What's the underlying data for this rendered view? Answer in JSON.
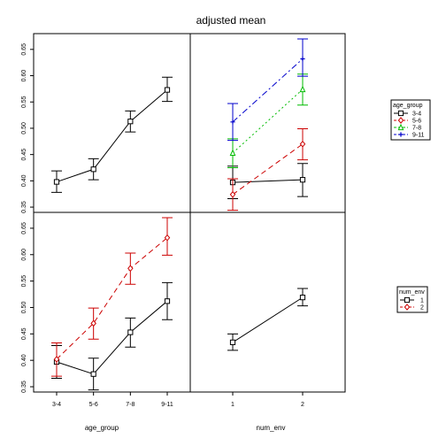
{
  "chart_data": {
    "type": "line",
    "title": "adjusted mean",
    "panels": {
      "age_main": {
        "type": "line",
        "xlabel": "",
        "categories": [
          "3-4",
          "5-6",
          "7-8",
          "9-11"
        ],
        "ylim": [
          0.34,
          0.68
        ],
        "yticks": [
          0.35,
          0.4,
          0.45,
          0.5,
          0.55,
          0.6,
          0.65
        ],
        "series": [
          {
            "values": [
              0.398,
              0.422,
              0.513,
              0.573
            ],
            "lower": [
              0.378,
              0.402,
              0.493,
              0.551
            ],
            "upper": [
              0.419,
              0.442,
              0.533,
              0.597
            ],
            "color": "#000000",
            "marker": "square",
            "dash": "solid"
          }
        ]
      },
      "env_by_age": {
        "type": "line",
        "categories": [
          "1",
          "2"
        ],
        "ylim": [
          0.34,
          0.68
        ],
        "series": [
          {
            "name": "3-4",
            "values": [
              0.397,
              0.402
            ],
            "lower": [
              0.366,
              0.37
            ],
            "upper": [
              0.428,
              0.433
            ],
            "color": "#000000",
            "marker": "square",
            "dash": "solid"
          },
          {
            "name": "5-6",
            "values": [
              0.374,
              0.47
            ],
            "lower": [
              0.344,
              0.44
            ],
            "upper": [
              0.404,
              0.499
            ],
            "color": "#cc0000",
            "marker": "diamond",
            "dash": "6,4"
          },
          {
            "name": "7-8",
            "values": [
              0.453,
              0.574
            ],
            "lower": [
              0.425,
              0.544
            ],
            "upper": [
              0.48,
              0.603
            ],
            "color": "#00bb00",
            "marker": "triangle",
            "dash": "2,3"
          },
          {
            "name": "9-11",
            "values": [
              0.512,
              0.632
            ],
            "lower": [
              0.477,
              0.599
            ],
            "upper": [
              0.547,
              0.67
            ],
            "color": "#0000cc",
            "marker": "plus",
            "dash": "7,3,2,3"
          }
        ]
      },
      "age_by_env": {
        "type": "line",
        "xlabel": "age_group",
        "categories": [
          "3-4",
          "5-6",
          "7-8",
          "9-11"
        ],
        "ylim": [
          0.34,
          0.68
        ],
        "yticks": [
          0.35,
          0.4,
          0.45,
          0.5,
          0.55,
          0.6,
          0.65
        ],
        "series": [
          {
            "name": "1",
            "values": [
              0.397,
              0.374,
              0.453,
              0.512
            ],
            "lower": [
              0.366,
              0.344,
              0.425,
              0.477
            ],
            "upper": [
              0.428,
              0.404,
              0.48,
              0.547
            ],
            "color": "#000000",
            "marker": "square",
            "dash": "solid"
          },
          {
            "name": "2",
            "values": [
              0.402,
              0.47,
              0.574,
              0.632
            ],
            "lower": [
              0.37,
              0.44,
              0.544,
              0.599
            ],
            "upper": [
              0.433,
              0.499,
              0.603,
              0.67
            ],
            "color": "#cc0000",
            "marker": "diamond",
            "dash": "6,4"
          }
        ]
      },
      "env_main": {
        "type": "line",
        "xlabel": "num_env",
        "categories": [
          "1",
          "2"
        ],
        "ylim": [
          0.34,
          0.68
        ],
        "series": [
          {
            "values": [
              0.434,
              0.519
            ],
            "lower": [
              0.419,
              0.503
            ],
            "upper": [
              0.45,
              0.536
            ],
            "color": "#000000",
            "marker": "square",
            "dash": "solid"
          }
        ]
      }
    },
    "legends": [
      {
        "title": "age_group",
        "placement": "right-top",
        "entries": [
          {
            "label": "3-4",
            "color": "#000000",
            "marker": "square",
            "dash": "solid"
          },
          {
            "label": "5-6",
            "color": "#cc0000",
            "marker": "diamond",
            "dash": "6,4"
          },
          {
            "label": "7-8",
            "color": "#00bb00",
            "marker": "triangle",
            "dash": "2,3"
          },
          {
            "label": "9-11",
            "color": "#0000cc",
            "marker": "plus",
            "dash": "7,3,2,3"
          }
        ]
      },
      {
        "title": "num_env",
        "placement": "right-bottom",
        "entries": [
          {
            "label": "1",
            "color": "#000000",
            "marker": "square",
            "dash": "solid"
          },
          {
            "label": "2",
            "color": "#cc0000",
            "marker": "diamond",
            "dash": "6,4"
          }
        ]
      }
    ]
  }
}
